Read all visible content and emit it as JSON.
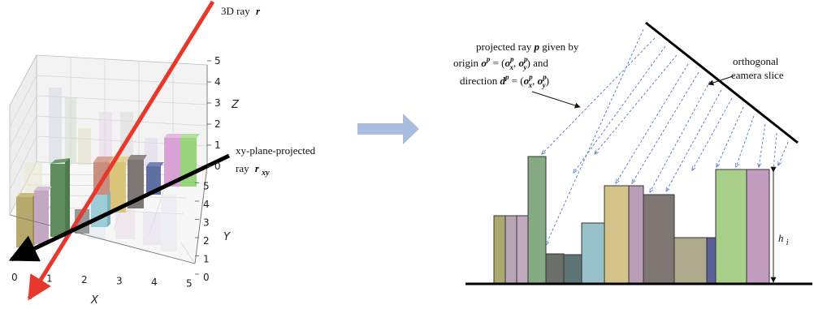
{
  "left_plot": {
    "ray_label": "3D ray",
    "ray_symbol": "r",
    "proj_label_line1": "xy-plane-projected",
    "proj_label_line2": "ray",
    "proj_symbol": "r",
    "proj_subscript": "xy",
    "axis_x_name": "X",
    "axis_y_name": "Y",
    "axis_z_name": "Z",
    "x_ticks": [
      "0",
      "1",
      "2",
      "3",
      "4",
      "5"
    ],
    "y_ticks": [
      "0",
      "1",
      "2",
      "3",
      "4",
      "5"
    ],
    "z_ticks": [
      "0",
      "1",
      "2",
      "3",
      "4",
      "5"
    ],
    "ray_color": "#e8382b",
    "proj_ray_color": "#000000"
  },
  "right_plot": {
    "proj_text_line1_a": "projected ray ",
    "proj_text_line1_sym": "p",
    "proj_text_line1_b": " given by",
    "proj_text_line2": "origin o^p = (o_x^p, o_y^p) and",
    "proj_text_line3": "direction d^p = (o_x^p, o_y^p)",
    "camera_line1": "orthogonal",
    "camera_line2": "camera slice",
    "height_label": "h",
    "height_subscript": "i",
    "ray_color": "#4a78c8"
  },
  "colors": {
    "arrow": "#a9bde0"
  }
}
